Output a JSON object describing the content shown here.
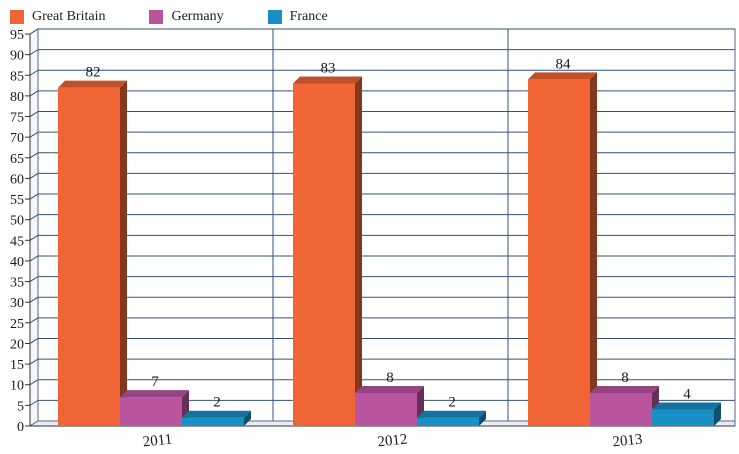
{
  "chart_data": {
    "type": "bar",
    "categories": [
      "2011",
      "2012",
      "2013"
    ],
    "series": [
      {
        "name": "Great Britain",
        "color": "#ef6535",
        "values": [
          82,
          83,
          84
        ]
      },
      {
        "name": "Germany",
        "color": "#b9559f",
        "values": [
          7,
          8,
          8
        ]
      },
      {
        "name": "France",
        "color": "#1a8fc5",
        "values": [
          2,
          2,
          4
        ]
      }
    ],
    "ylim": [
      0,
      95
    ],
    "yticks": [
      0,
      5,
      10,
      15,
      20,
      25,
      30,
      35,
      40,
      45,
      50,
      55,
      60,
      65,
      70,
      75,
      80,
      85,
      90,
      95
    ],
    "grid": true,
    "legend_position": "top-left",
    "data_labels": true,
    "style": "3d-bars"
  }
}
